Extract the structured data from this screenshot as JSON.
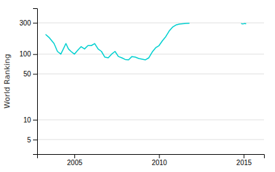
{
  "chart_data": {
    "type": "line",
    "y_label": "World Ranking",
    "color": "#00d0d0",
    "log": "y",
    "grid": "y",
    "xlim": [
      2002.8,
      2016.2
    ],
    "xticks": [
      2005,
      2010,
      2015
    ],
    "ylim": [
      3,
      500
    ],
    "yticks": [
      5,
      10,
      50,
      100,
      300
    ],
    "series": [
      {
        "x": [
          2003.3,
          2003.5,
          2003.8,
          2004.0,
          2004.2,
          2004.35,
          2004.5,
          2004.65,
          2004.8,
          2005.0,
          2005.2,
          2005.4,
          2005.6,
          2005.8,
          2006.0,
          2006.2,
          2006.4,
          2006.6,
          2006.8,
          2007.0,
          2007.2,
          2007.4,
          2007.6,
          2007.8,
          2008.0,
          2008.2,
          2008.4,
          2008.6,
          2008.8,
          2009.0,
          2009.2,
          2009.4,
          2009.6,
          2009.8,
          2010.0,
          2010.2,
          2010.4,
          2010.6,
          2010.8,
          2011.0,
          2011.2,
          2011.4,
          2011.6,
          2011.8
        ],
        "values": [
          200,
          180,
          145,
          110,
          100,
          120,
          145,
          120,
          110,
          100,
          115,
          130,
          120,
          135,
          135,
          145,
          120,
          110,
          90,
          88,
          100,
          110,
          92,
          88,
          83,
          82,
          92,
          90,
          86,
          84,
          82,
          88,
          108,
          125,
          135,
          160,
          185,
          225,
          258,
          278,
          287,
          291,
          294,
          296
        ]
      },
      {
        "x": [
          2014.85,
          2014.95,
          2015.05,
          2015.15
        ],
        "values": [
          292,
          288,
          293,
          291
        ]
      }
    ]
  }
}
